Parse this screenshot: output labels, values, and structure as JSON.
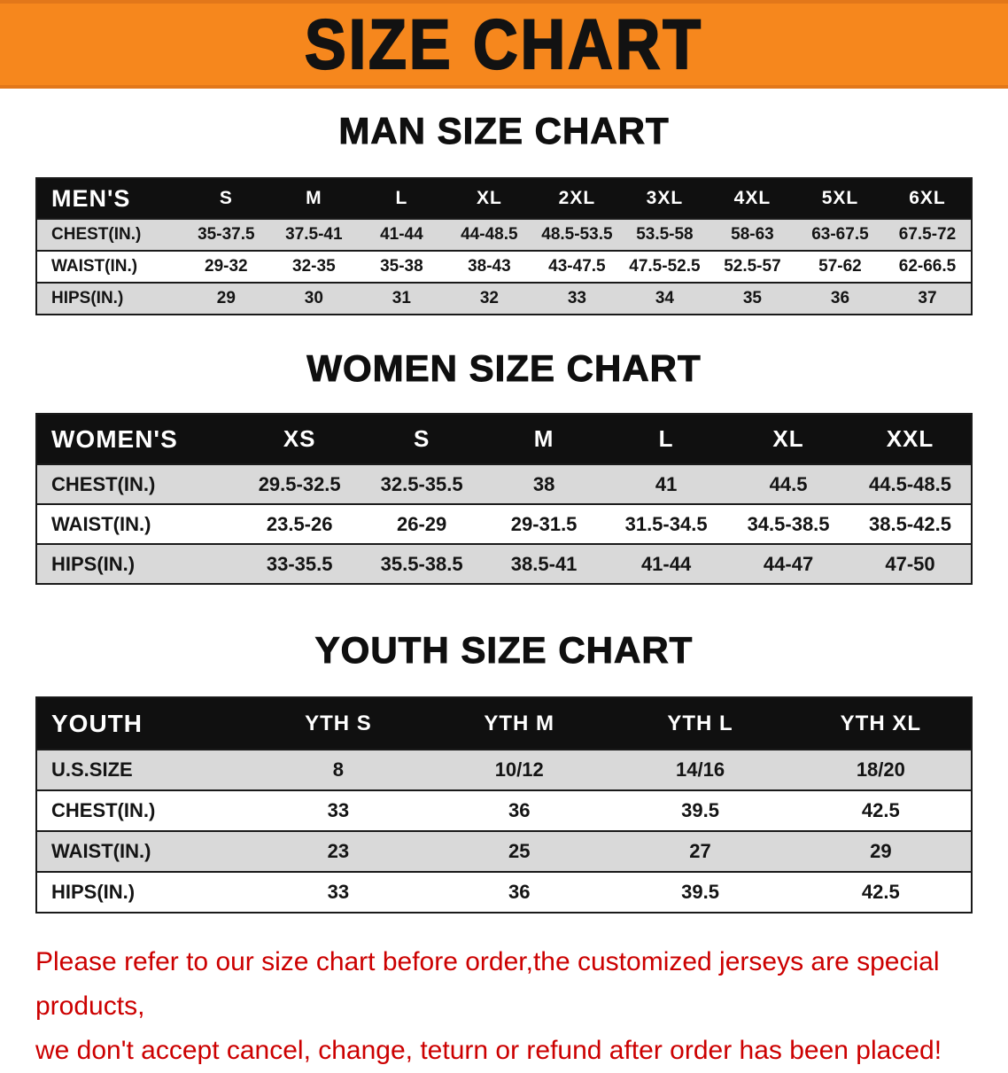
{
  "banner": {
    "title": "SIZE CHART"
  },
  "sections": [
    {
      "heading": "MAN SIZE CHART",
      "table": {
        "header": [
          "MEN'S",
          "S",
          "M",
          "L",
          "XL",
          "2XL",
          "3XL",
          "4XL",
          "5XL",
          "6XL"
        ],
        "rows": [
          [
            "CHEST(IN.)",
            "35-37.5",
            "37.5-41",
            "41-44",
            "44-48.5",
            "48.5-53.5",
            "53.5-58",
            "58-63",
            "63-67.5",
            "67.5-72"
          ],
          [
            "WAIST(IN.)",
            "29-32",
            "32-35",
            "35-38",
            "38-43",
            "43-47.5",
            "47.5-52.5",
            "52.5-57",
            "57-62",
            "62-66.5"
          ],
          [
            "HIPS(IN.)",
            "29",
            "30",
            "31",
            "32",
            "33",
            "34",
            "35",
            "36",
            "37"
          ]
        ]
      }
    },
    {
      "heading": "WOMEN SIZE CHART",
      "table": {
        "header": [
          "WOMEN'S",
          "XS",
          "S",
          "M",
          "L",
          "XL",
          "XXL"
        ],
        "rows": [
          [
            "CHEST(IN.)",
            "29.5-32.5",
            "32.5-35.5",
            "38",
            "41",
            "44.5",
            "44.5-48.5"
          ],
          [
            "WAIST(IN.)",
            "23.5-26",
            "26-29",
            "29-31.5",
            "31.5-34.5",
            "34.5-38.5",
            "38.5-42.5"
          ],
          [
            "HIPS(IN.)",
            "33-35.5",
            "35.5-38.5",
            "38.5-41",
            "41-44",
            "44-47",
            "47-50"
          ]
        ]
      }
    },
    {
      "heading": "YOUTH SIZE CHART",
      "table": {
        "header": [
          "YOUTH",
          "YTH S",
          "YTH M",
          "YTH L",
          "YTH XL"
        ],
        "rows": [
          [
            "U.S.SIZE",
            "8",
            "10/12",
            "14/16",
            "18/20"
          ],
          [
            "CHEST(IN.)",
            "33",
            "36",
            "39.5",
            "42.5"
          ],
          [
            "WAIST(IN.)",
            "23",
            "25",
            "27",
            "29"
          ],
          [
            "HIPS(IN.)",
            "33",
            "36",
            "39.5",
            "42.5"
          ]
        ]
      }
    }
  ],
  "disclaimer": {
    "line1": "Please refer to our size chart before order,the customized jerseys are special products,",
    "line2": "we don't accept cancel, change, teturn or refund after order has been placed!"
  },
  "colors": {
    "banner_bg": "#f6871d",
    "table_header_bg": "#101010",
    "row_alt": "#d9d9d9",
    "disclaimer_red": "#cc0000"
  }
}
